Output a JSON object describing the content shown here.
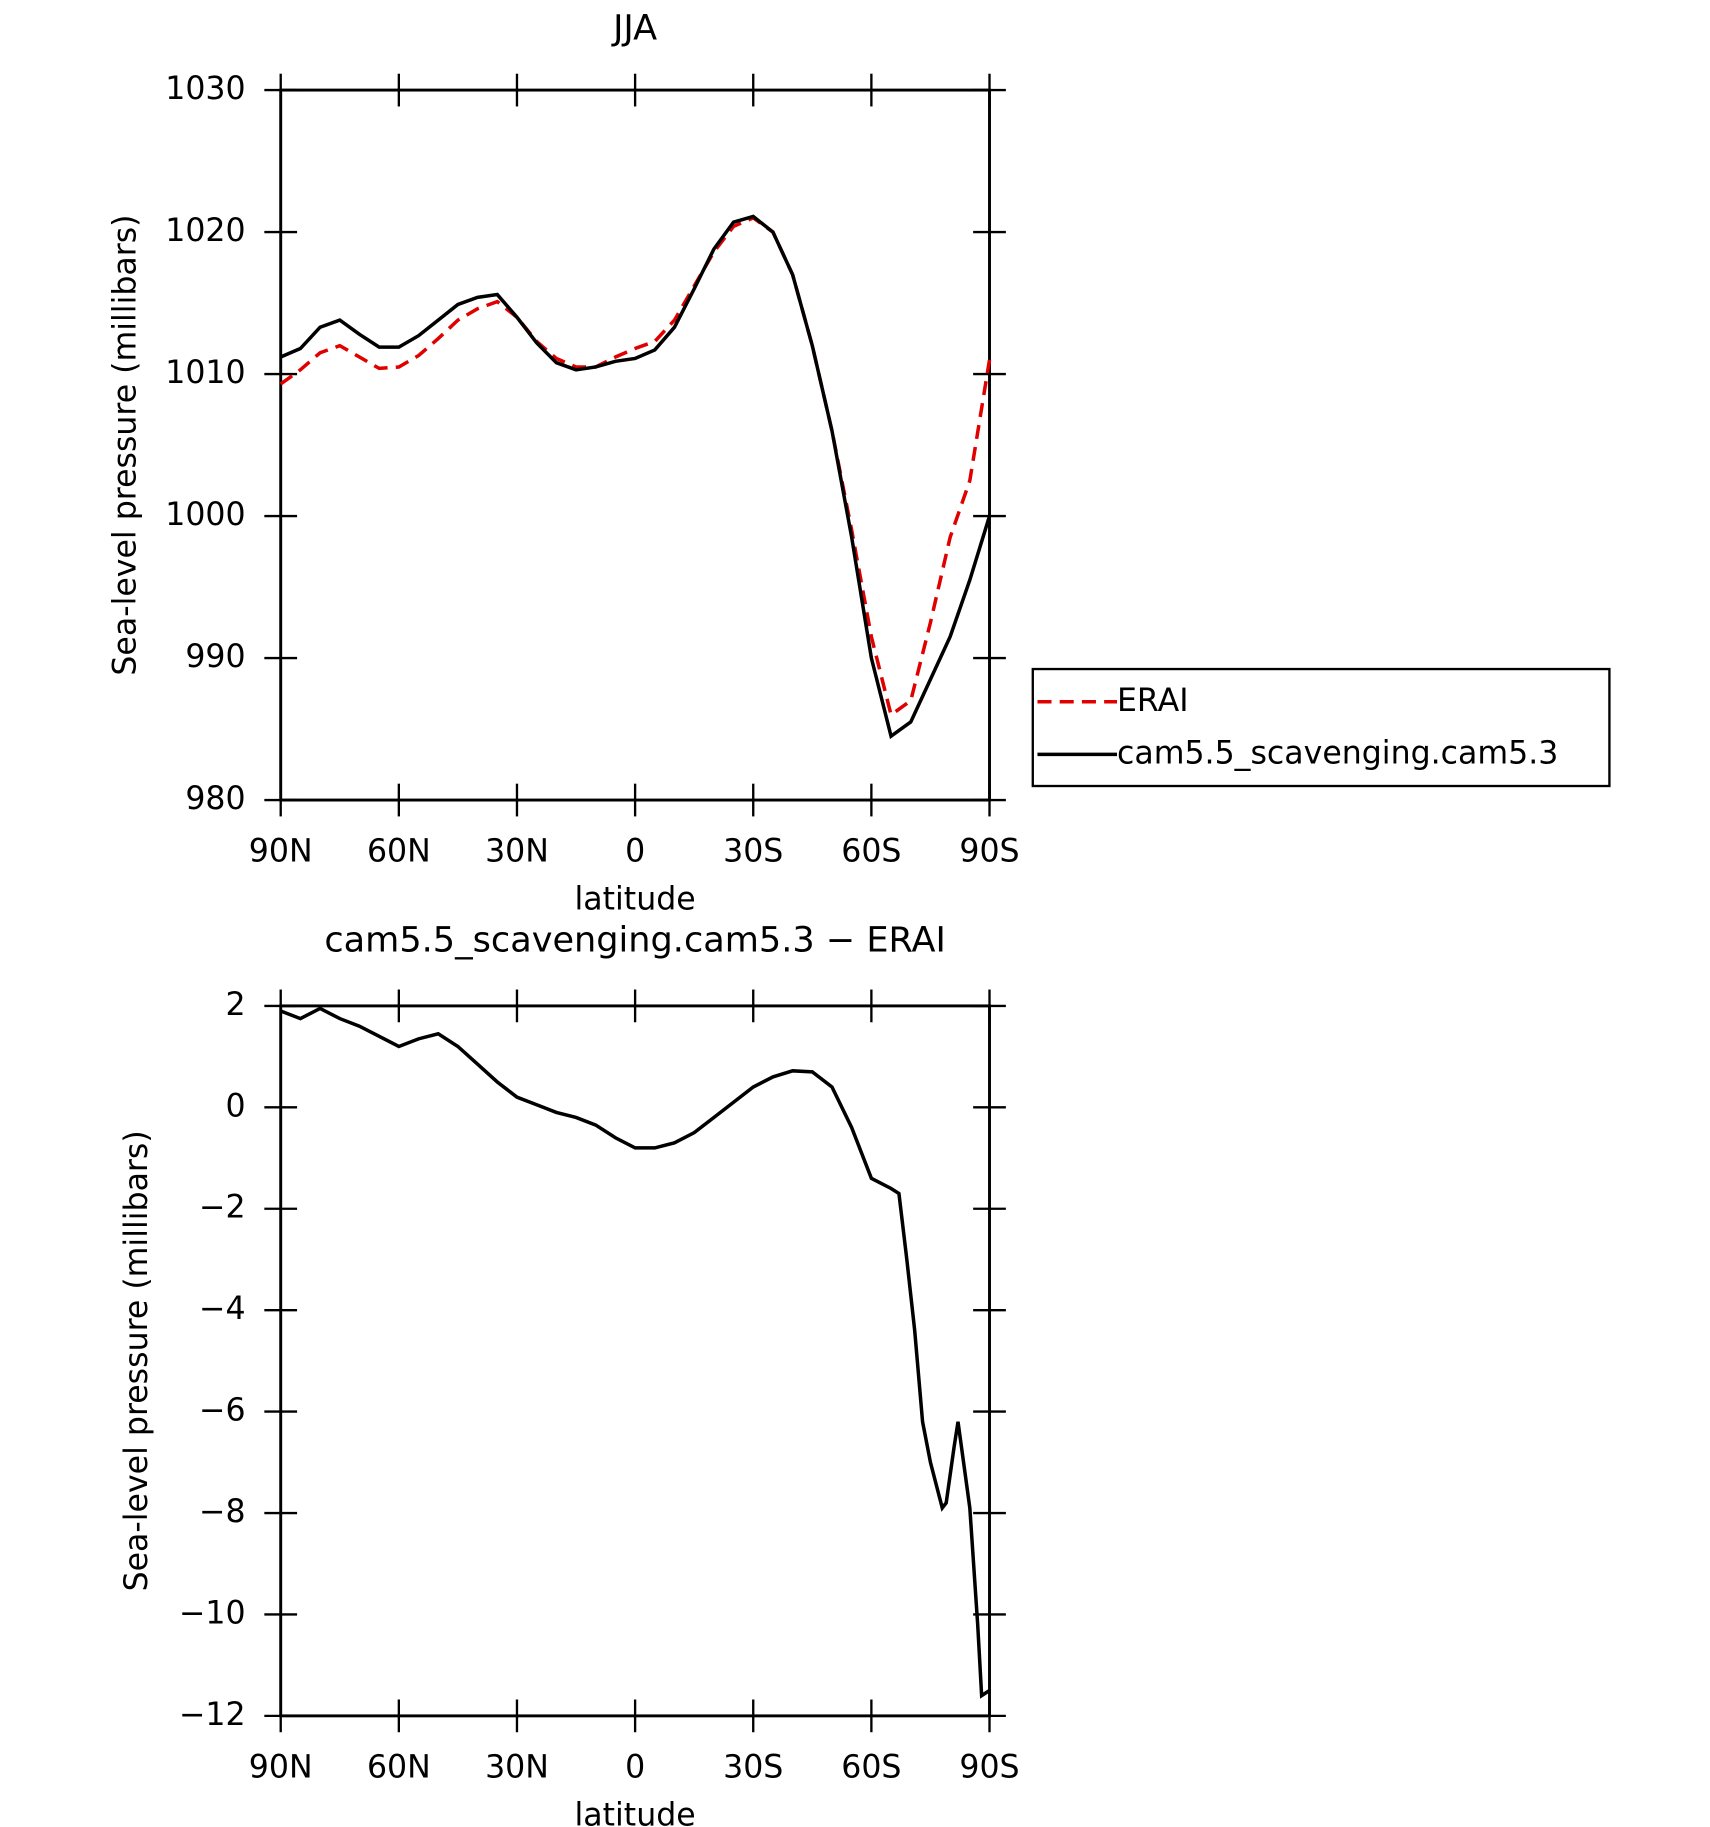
{
  "chart_data": [
    {
      "type": "line",
      "title": "JJA",
      "xlabel": "latitude",
      "ylabel": "Sea-level pressure (millibars)",
      "x": [
        90,
        85,
        80,
        75,
        70,
        65,
        60,
        55,
        50,
        45,
        40,
        35,
        30,
        25,
        20,
        15,
        10,
        5,
        0,
        -5,
        -10,
        -15,
        -20,
        -25,
        -30,
        -35,
        -40,
        -45,
        -50,
        -55,
        -60,
        -65,
        -70,
        -75,
        -80,
        -85,
        -90
      ],
      "series": [
        {
          "name": "ERAI",
          "color": "#e00000",
          "line_style": "dashed",
          "values": [
            1009.3,
            1010.3,
            1011.5,
            1012.0,
            1011.2,
            1010.4,
            1010.5,
            1011.3,
            1012.5,
            1013.8,
            1014.6,
            1015.1,
            1014.0,
            1012.3,
            1011.1,
            1010.5,
            1010.5,
            1011.2,
            1011.8,
            1012.3,
            1013.8,
            1016.2,
            1018.6,
            1020.4,
            1021.0,
            1020.0,
            1017.0,
            1012.0,
            1006.0,
            999.0,
            991.5,
            986.0,
            987.0,
            992.5,
            998.5,
            1002.5,
            1011.0
          ]
        },
        {
          "name": "cam5.5_scavenging.cam5.3",
          "color": "#000000",
          "line_style": "solid",
          "values": [
            1011.2,
            1011.8,
            1013.3,
            1013.8,
            1012.8,
            1011.9,
            1011.9,
            1012.7,
            1013.8,
            1014.9,
            1015.4,
            1015.6,
            1014.0,
            1012.2,
            1010.8,
            1010.3,
            1010.5,
            1010.9,
            1011.1,
            1011.7,
            1013.3,
            1016.0,
            1018.8,
            1020.7,
            1021.1,
            1020.0,
            1017.0,
            1012.0,
            1006.0,
            998.5,
            990.0,
            984.5,
            985.5,
            988.5,
            991.5,
            995.5,
            1000.0
          ]
        }
      ],
      "xlim": [
        90,
        -90
      ],
      "ylim": [
        980,
        1030
      ],
      "xticks": [
        {
          "value": 90,
          "label": "90N"
        },
        {
          "value": 60,
          "label": "60N"
        },
        {
          "value": 30,
          "label": "30N"
        },
        0,
        {
          "value": -30,
          "label": "30S"
        },
        {
          "value": -60,
          "label": "60S"
        },
        {
          "value": -90,
          "label": "90S"
        }
      ],
      "yticks": [
        980,
        990,
        1000,
        1010,
        1020,
        1030
      ],
      "legend": "right"
    },
    {
      "type": "line",
      "title": "cam5.5_scavenging.cam5.3 − ERAI",
      "xlabel": "latitude",
      "ylabel": "Sea-level pressure (millibars)",
      "x": [
        90,
        85,
        80,
        75,
        70,
        65,
        60,
        55,
        50,
        45,
        40,
        35,
        30,
        25,
        20,
        15,
        10,
        5,
        0,
        -5,
        -10,
        -15,
        -20,
        -25,
        -30,
        -35,
        -40,
        -45,
        -50,
        -55,
        -60,
        -65,
        -67,
        -69,
        -71,
        -73,
        -75,
        -78,
        -79,
        -81,
        -82,
        -85,
        -87,
        -88,
        -90
      ],
      "series": [
        {
          "color": "#000000",
          "line_style": "solid",
          "values": [
            1.9,
            1.75,
            1.95,
            1.75,
            1.6,
            1.4,
            1.2,
            1.35,
            1.45,
            1.2,
            0.85,
            0.5,
            0.2,
            0.05,
            -0.1,
            -0.2,
            -0.35,
            -0.6,
            -0.8,
            -0.8,
            -0.7,
            -0.5,
            -0.2,
            0.1,
            0.4,
            0.6,
            0.72,
            0.7,
            0.4,
            -0.4,
            -1.4,
            -1.6,
            -1.7,
            -3.0,
            -4.4,
            -6.2,
            -7.0,
            -7.9,
            -7.8,
            -6.7,
            -6.2,
            -7.9,
            -10.2,
            -11.6,
            -11.5
          ]
        }
      ],
      "xlim": [
        90,
        -90
      ],
      "ylim": [
        -12,
        2
      ],
      "xticks": [
        {
          "value": 90,
          "label": "90N"
        },
        {
          "value": 60,
          "label": "60N"
        },
        {
          "value": 30,
          "label": "30N"
        },
        0,
        {
          "value": -30,
          "label": "30S"
        },
        {
          "value": -60,
          "label": "60S"
        },
        {
          "value": -90,
          "label": "90S"
        }
      ],
      "yticks": [
        {
          "value": -12,
          "label": "−12"
        },
        {
          "value": -10,
          "label": "−10"
        },
        {
          "value": -8,
          "label": "−8"
        },
        {
          "value": -6,
          "label": "−6"
        },
        {
          "value": -4,
          "label": "−4"
        },
        {
          "value": -2,
          "label": "−2"
        },
        0,
        2
      ]
    }
  ]
}
